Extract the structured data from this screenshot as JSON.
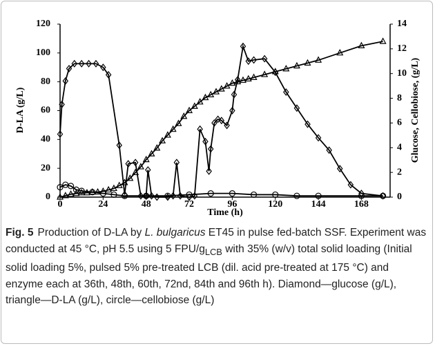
{
  "chart_data": {
    "type": "line",
    "ylabel": "D-LA (g/L)",
    "y2label": "Glucose, Cellobiose, (g/L)",
    "xlabel": "Time (h)",
    "xlim": [
      0,
      184
    ],
    "xticks": [
      0,
      24,
      48,
      72,
      96,
      120,
      144,
      168
    ],
    "ylim": [
      0,
      120
    ],
    "yticks": [
      0,
      20,
      40,
      60,
      80,
      100,
      120
    ],
    "y2lim": [
      0,
      14
    ],
    "y2ticks": [
      0,
      2,
      4,
      6,
      8,
      10,
      12,
      14
    ],
    "series": [
      {
        "marker": "triangle",
        "color": "#000000",
        "axis": "y",
        "x": [
          0,
          3,
          6,
          9,
          12,
          15,
          18,
          21,
          24,
          27,
          30,
          33,
          36,
          39,
          42,
          45,
          48,
          51,
          54,
          57,
          60,
          63,
          66,
          69,
          72,
          75,
          78,
          81,
          84,
          87,
          90,
          93,
          96,
          99,
          102,
          105,
          108,
          114,
          120,
          126,
          132,
          138,
          144,
          156,
          168,
          180
        ],
        "values": [
          0,
          1,
          2,
          2.5,
          3,
          3,
          3.5,
          3.5,
          4,
          5,
          6,
          8,
          10,
          13,
          17,
          21,
          26,
          30,
          34,
          39,
          43,
          47,
          51,
          56,
          60,
          63,
          66,
          69,
          71,
          73,
          75,
          77,
          79,
          80,
          81,
          82,
          83,
          85,
          87,
          89,
          91,
          93,
          95,
          100,
          105,
          108
        ]
      },
      {
        "marker": "diamond",
        "color": "#000000",
        "axis": "y2",
        "x": [
          0,
          1,
          3,
          5,
          8,
          12,
          16,
          20,
          24,
          27,
          33,
          36,
          38,
          42,
          45,
          48,
          49,
          51,
          54,
          60,
          63,
          65,
          67,
          72,
          75,
          78,
          81,
          83,
          84,
          86,
          88,
          90,
          93,
          96,
          97,
          99,
          102,
          105,
          108,
          114,
          120,
          126,
          132,
          138,
          144,
          150,
          156,
          162,
          168,
          180
        ],
        "values": [
          5.1,
          7.5,
          9.4,
          10.4,
          10.8,
          10.8,
          10.8,
          10.8,
          10.5,
          9.9,
          4.2,
          0.2,
          2.7,
          2.8,
          0.1,
          0.1,
          2.2,
          0.1,
          0,
          0,
          0.1,
          2.8,
          0.1,
          0,
          0.1,
          5.5,
          4.5,
          2.1,
          3.9,
          6,
          6.3,
          6.2,
          5.8,
          7,
          8.3,
          9.5,
          12.2,
          11,
          11.1,
          11.2,
          10.1,
          8.5,
          7.2,
          5.9,
          4.8,
          3.8,
          2.3,
          1,
          0.3,
          0.1
        ]
      },
      {
        "marker": "circle",
        "color": "#000000",
        "axis": "y2",
        "x": [
          0,
          3,
          6,
          9,
          12,
          18,
          24,
          30,
          36,
          48,
          60,
          72,
          84,
          96,
          108,
          120,
          132,
          144,
          168,
          180
        ],
        "values": [
          0.8,
          1,
          0.9,
          0.6,
          0.5,
          0.4,
          0.3,
          0.2,
          0.1,
          0.1,
          0.1,
          0.2,
          0.3,
          0.3,
          0.2,
          0.2,
          0.1,
          0.1,
          0.1,
          0.1
        ]
      }
    ]
  },
  "caption": {
    "label": "Fig. 5",
    "text_1": "Production of D-LA by ",
    "species": "L. bulgaricus",
    "text_2": " ET45 in pulse fed-batch SSF. Experiment was conducted at 45 °C, pH 5.5 using 5 FPU/g",
    "subscript": "LCB",
    "text_3": " with 35% (w/v) total solid loading (Initial solid loading 5%, pulsed 5% pre-treated LCB (dil. acid pre-treated at 175 °C) and enzyme each at 36th, 48th, 60th, 72nd, 84th and 96th h). Diamond—glucose (g/L), triangle—D-LA (g/L), circle—cellobiose (g/L)"
  }
}
